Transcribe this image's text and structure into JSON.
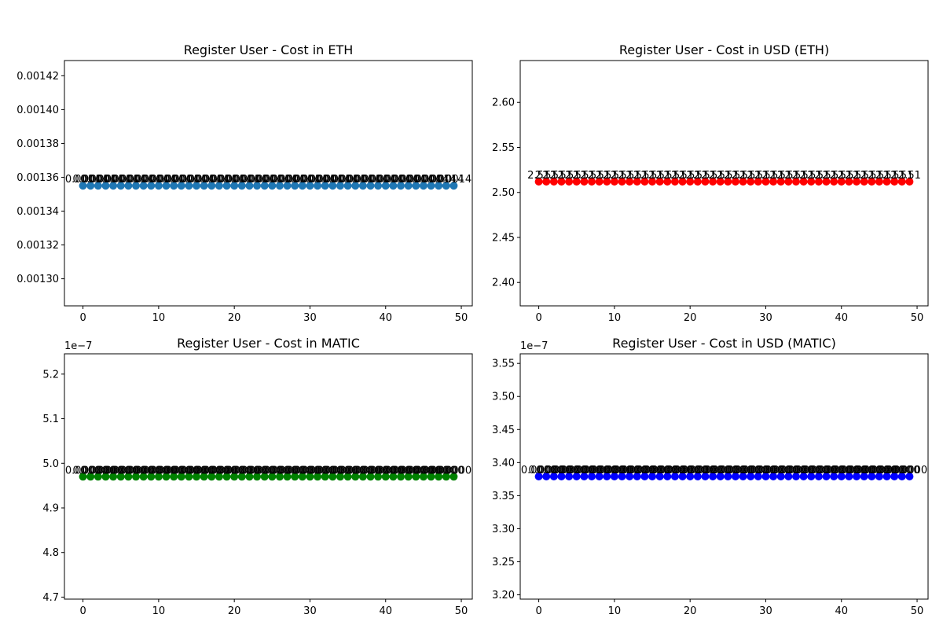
{
  "chart_data": [
    {
      "type": "scatter",
      "title": "Register User - Cost in ETH",
      "xlabel": "",
      "ylabel": "",
      "x_ticks": [
        "0",
        "10",
        "20",
        "30",
        "40",
        "50"
      ],
      "y_ticks": [
        "0.00130",
        "0.00132",
        "0.00134",
        "0.00136",
        "0.00138",
        "0.00140",
        "0.00142"
      ],
      "y_offset_text": "",
      "xlim": [
        -2.45,
        51.45
      ],
      "ylim": [
        0.001284,
        0.001429
      ],
      "x_start": 0,
      "x_end": 49,
      "y_value": 0.001355,
      "point_label": "0.0014",
      "color": "#1f77b4"
    },
    {
      "type": "scatter",
      "title": "Register User - Cost in USD (ETH)",
      "xlabel": "",
      "ylabel": "",
      "x_ticks": [
        "0",
        "10",
        "20",
        "30",
        "40",
        "50"
      ],
      "y_ticks": [
        "2.40",
        "2.45",
        "2.50",
        "2.55",
        "2.60"
      ],
      "y_offset_text": "",
      "xlim": [
        -2.45,
        51.45
      ],
      "ylim": [
        2.374,
        2.6465
      ],
      "x_start": 0,
      "x_end": 49,
      "y_value": 2.512,
      "point_label": "2.51",
      "color": "#ff0000"
    },
    {
      "type": "scatter",
      "title": "Register User - Cost in MATIC",
      "xlabel": "",
      "ylabel": "",
      "x_ticks": [
        "0",
        "10",
        "20",
        "30",
        "40",
        "50"
      ],
      "y_ticks": [
        "4.7",
        "4.8",
        "4.9",
        "5.0",
        "5.1",
        "5.2"
      ],
      "y_offset_text": "1e−7",
      "xlim": [
        -2.45,
        51.45
      ],
      "ylim": [
        4.6955,
        5.2455
      ],
      "x_start": 0,
      "x_end": 49,
      "y_value": 4.97,
      "point_label": "0.0000",
      "color": "#008000"
    },
    {
      "type": "scatter",
      "title": "Register User - Cost in USD (MATIC)",
      "xlabel": "",
      "ylabel": "",
      "x_ticks": [
        "0",
        "10",
        "20",
        "30",
        "40",
        "50"
      ],
      "y_ticks": [
        "3.20",
        "3.25",
        "3.30",
        "3.35",
        "3.40",
        "3.45",
        "3.50",
        "3.55"
      ],
      "y_offset_text": "1e−7",
      "xlim": [
        -2.45,
        51.45
      ],
      "ylim": [
        3.1935,
        3.5645
      ],
      "x_start": 0,
      "x_end": 49,
      "y_value": 3.379,
      "point_label": "0.0000",
      "color": "#0000ff"
    }
  ]
}
